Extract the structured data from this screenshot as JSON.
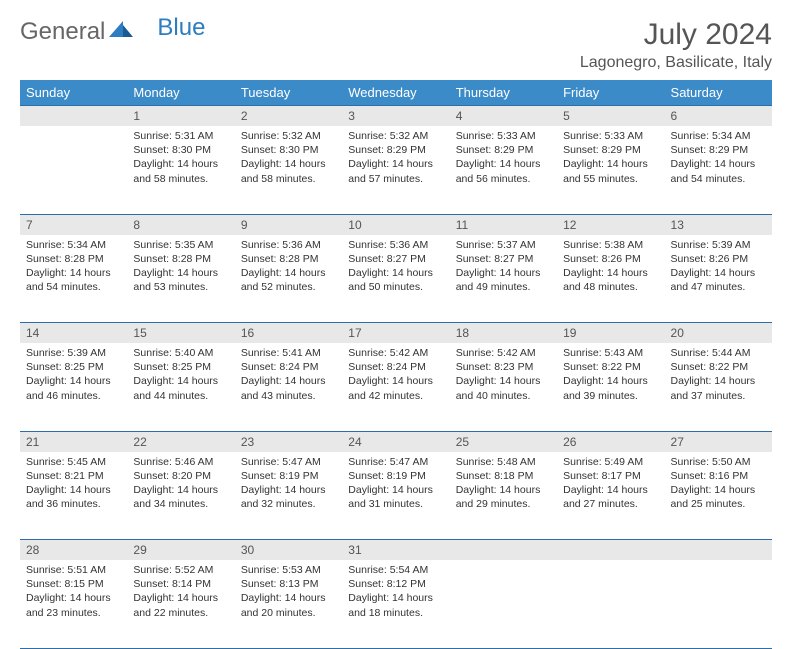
{
  "logo": {
    "text1": "General",
    "text2": "Blue"
  },
  "title": "July 2024",
  "location": "Lagonegro, Basilicate, Italy",
  "colors": {
    "header_bg": "#3b8bc9",
    "border": "#2d6ea8",
    "daynum_bg": "#e8e8e8"
  },
  "weekdays": [
    "Sunday",
    "Monday",
    "Tuesday",
    "Wednesday",
    "Thursday",
    "Friday",
    "Saturday"
  ],
  "weeks": [
    {
      "nums": [
        "",
        "1",
        "2",
        "3",
        "4",
        "5",
        "6"
      ],
      "cells": [
        null,
        {
          "sunrise": "5:31 AM",
          "sunset": "8:30 PM",
          "daylight": "14 hours and 58 minutes."
        },
        {
          "sunrise": "5:32 AM",
          "sunset": "8:30 PM",
          "daylight": "14 hours and 58 minutes."
        },
        {
          "sunrise": "5:32 AM",
          "sunset": "8:29 PM",
          "daylight": "14 hours and 57 minutes."
        },
        {
          "sunrise": "5:33 AM",
          "sunset": "8:29 PM",
          "daylight": "14 hours and 56 minutes."
        },
        {
          "sunrise": "5:33 AM",
          "sunset": "8:29 PM",
          "daylight": "14 hours and 55 minutes."
        },
        {
          "sunrise": "5:34 AM",
          "sunset": "8:29 PM",
          "daylight": "14 hours and 54 minutes."
        }
      ]
    },
    {
      "nums": [
        "7",
        "8",
        "9",
        "10",
        "11",
        "12",
        "13"
      ],
      "cells": [
        {
          "sunrise": "5:34 AM",
          "sunset": "8:28 PM",
          "daylight": "14 hours and 54 minutes."
        },
        {
          "sunrise": "5:35 AM",
          "sunset": "8:28 PM",
          "daylight": "14 hours and 53 minutes."
        },
        {
          "sunrise": "5:36 AM",
          "sunset": "8:28 PM",
          "daylight": "14 hours and 52 minutes."
        },
        {
          "sunrise": "5:36 AM",
          "sunset": "8:27 PM",
          "daylight": "14 hours and 50 minutes."
        },
        {
          "sunrise": "5:37 AM",
          "sunset": "8:27 PM",
          "daylight": "14 hours and 49 minutes."
        },
        {
          "sunrise": "5:38 AM",
          "sunset": "8:26 PM",
          "daylight": "14 hours and 48 minutes."
        },
        {
          "sunrise": "5:39 AM",
          "sunset": "8:26 PM",
          "daylight": "14 hours and 47 minutes."
        }
      ]
    },
    {
      "nums": [
        "14",
        "15",
        "16",
        "17",
        "18",
        "19",
        "20"
      ],
      "cells": [
        {
          "sunrise": "5:39 AM",
          "sunset": "8:25 PM",
          "daylight": "14 hours and 46 minutes."
        },
        {
          "sunrise": "5:40 AM",
          "sunset": "8:25 PM",
          "daylight": "14 hours and 44 minutes."
        },
        {
          "sunrise": "5:41 AM",
          "sunset": "8:24 PM",
          "daylight": "14 hours and 43 minutes."
        },
        {
          "sunrise": "5:42 AM",
          "sunset": "8:24 PM",
          "daylight": "14 hours and 42 minutes."
        },
        {
          "sunrise": "5:42 AM",
          "sunset": "8:23 PM",
          "daylight": "14 hours and 40 minutes."
        },
        {
          "sunrise": "5:43 AM",
          "sunset": "8:22 PM",
          "daylight": "14 hours and 39 minutes."
        },
        {
          "sunrise": "5:44 AM",
          "sunset": "8:22 PM",
          "daylight": "14 hours and 37 minutes."
        }
      ]
    },
    {
      "nums": [
        "21",
        "22",
        "23",
        "24",
        "25",
        "26",
        "27"
      ],
      "cells": [
        {
          "sunrise": "5:45 AM",
          "sunset": "8:21 PM",
          "daylight": "14 hours and 36 minutes."
        },
        {
          "sunrise": "5:46 AM",
          "sunset": "8:20 PM",
          "daylight": "14 hours and 34 minutes."
        },
        {
          "sunrise": "5:47 AM",
          "sunset": "8:19 PM",
          "daylight": "14 hours and 32 minutes."
        },
        {
          "sunrise": "5:47 AM",
          "sunset": "8:19 PM",
          "daylight": "14 hours and 31 minutes."
        },
        {
          "sunrise": "5:48 AM",
          "sunset": "8:18 PM",
          "daylight": "14 hours and 29 minutes."
        },
        {
          "sunrise": "5:49 AM",
          "sunset": "8:17 PM",
          "daylight": "14 hours and 27 minutes."
        },
        {
          "sunrise": "5:50 AM",
          "sunset": "8:16 PM",
          "daylight": "14 hours and 25 minutes."
        }
      ]
    },
    {
      "nums": [
        "28",
        "29",
        "30",
        "31",
        "",
        "",
        ""
      ],
      "cells": [
        {
          "sunrise": "5:51 AM",
          "sunset": "8:15 PM",
          "daylight": "14 hours and 23 minutes."
        },
        {
          "sunrise": "5:52 AM",
          "sunset": "8:14 PM",
          "daylight": "14 hours and 22 minutes."
        },
        {
          "sunrise": "5:53 AM",
          "sunset": "8:13 PM",
          "daylight": "14 hours and 20 minutes."
        },
        {
          "sunrise": "5:54 AM",
          "sunset": "8:12 PM",
          "daylight": "14 hours and 18 minutes."
        },
        null,
        null,
        null
      ]
    }
  ],
  "labels": {
    "sunrise": "Sunrise: ",
    "sunset": "Sunset: ",
    "daylight": "Daylight: "
  }
}
